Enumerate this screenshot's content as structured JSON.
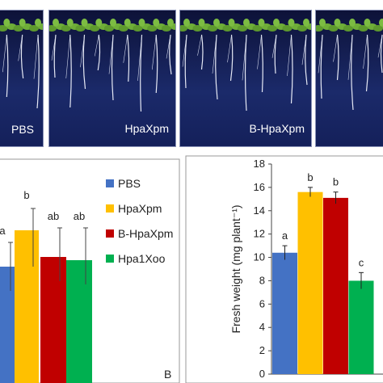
{
  "photos": [
    {
      "label": ""
    },
    {
      "label": "PBS"
    },
    {
      "label": "HpaXpm"
    },
    {
      "label": "B-HpaXpm"
    },
    {
      "label": ""
    }
  ],
  "chart_data": [
    {
      "type": "bar",
      "categories": [
        "PBS",
        "HpaXpm",
        "B-HpaXpm",
        "Hpa1Xoo"
      ],
      "values": [
        null,
        null,
        null,
        null
      ],
      "significance": [
        "a",
        "b",
        "ab",
        "ab"
      ],
      "colors": [
        "#4472c4",
        "#ffc000",
        "#c00000",
        "#00b050"
      ],
      "legend": [
        "PBS",
        "HpaXpm",
        "B-HpaXpm",
        "Hpa1Xoo"
      ],
      "legend_placement": "right"
    },
    {
      "type": "bar",
      "categories": [
        "PBS",
        "HpaXpm",
        "B-HpaXpm",
        "Hpa1Xoo"
      ],
      "values": [
        10.4,
        15.6,
        15.1,
        8.0
      ],
      "errors": [
        0.6,
        0.4,
        0.5,
        0.7
      ],
      "significance": [
        "a",
        "b",
        "b",
        "c"
      ],
      "colors": [
        "#4472c4",
        "#ffc000",
        "#c00000",
        "#00b050"
      ],
      "ylabel": "Fresh weight (mg plant⁻¹)",
      "ylim": [
        0,
        18
      ],
      "yticks": [
        "0",
        "2",
        "4",
        "6",
        "8",
        "10",
        "12",
        "14",
        "16",
        "18"
      ],
      "panel_label": "B"
    }
  ]
}
